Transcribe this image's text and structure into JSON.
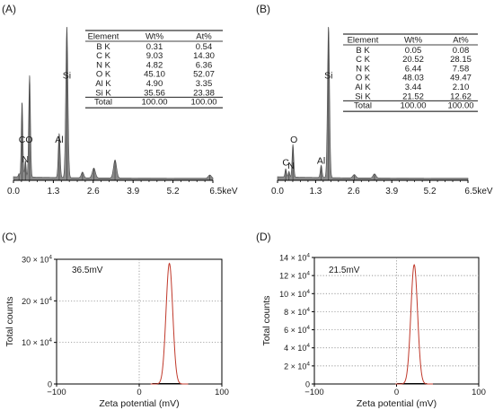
{
  "colors": {
    "spectrum_fill": "#8a8a8a",
    "spectrum_line": "#4a4a4a",
    "zeta_curve": "#c0392b",
    "zeta_base": "#000000",
    "grid": "#777777"
  },
  "chart_data": [
    {
      "id": "A",
      "panel_label": "(A)",
      "type": "area",
      "x_ticks": [
        "0.0",
        "1.3",
        "2.6",
        "3.9",
        "5.2",
        "6.5keV"
      ],
      "xlim": [
        0,
        6.5
      ],
      "peaks": [
        {
          "x": 0.18,
          "height": 0.02,
          "width": 0.02
        },
        {
          "x": 0.28,
          "height": 0.46,
          "width": 0.025
        },
        {
          "x": 0.39,
          "height": 0.1,
          "width": 0.022
        },
        {
          "x": 0.525,
          "height": 0.62,
          "width": 0.028
        },
        {
          "x": 1.49,
          "height": 0.27,
          "width": 0.03
        },
        {
          "x": 1.74,
          "height": 0.92,
          "width": 0.035
        },
        {
          "x": 2.25,
          "height": 0.035,
          "width": 0.04
        },
        {
          "x": 2.62,
          "height": 0.06,
          "width": 0.05
        },
        {
          "x": 3.31,
          "height": 0.11,
          "width": 0.05
        },
        {
          "x": 6.4,
          "height": 0.02,
          "width": 0.05
        }
      ],
      "peak_labels": [
        {
          "text": "Si",
          "x": 1.74,
          "y": 0.62
        },
        {
          "text": "CO",
          "x": 0.4,
          "y": 0.23
        },
        {
          "text": "Al",
          "x": 1.49,
          "y": 0.23
        },
        {
          "text": "N",
          "x": 0.39,
          "y": 0.11
        }
      ],
      "table": {
        "headers": [
          "Element",
          "Wt%",
          "At%"
        ],
        "rows": [
          [
            "B K",
            "0.31",
            "0.54"
          ],
          [
            "C K",
            "9.03",
            "14.30"
          ],
          [
            "N K",
            "4.82",
            "6.36"
          ],
          [
            "O K",
            "45.10",
            "52.07"
          ],
          [
            "Al K",
            "4.90",
            "3.35"
          ],
          [
            "Si K",
            "35.56",
            "23.38"
          ],
          [
            "Total",
            "100.00",
            "100.00"
          ]
        ]
      }
    },
    {
      "id": "B",
      "panel_label": "(B)",
      "type": "area",
      "x_ticks": [
        "0.0",
        "1.3",
        "2.6",
        "3.9",
        "5.2",
        "6.5keV"
      ],
      "xlim": [
        0,
        6.5
      ],
      "peaks": [
        {
          "x": 0.28,
          "height": 0.05,
          "width": 0.025
        },
        {
          "x": 0.39,
          "height": 0.035,
          "width": 0.022
        },
        {
          "x": 0.525,
          "height": 0.2,
          "width": 0.028
        },
        {
          "x": 1.49,
          "height": 0.075,
          "width": 0.03
        },
        {
          "x": 1.74,
          "height": 0.92,
          "width": 0.035
        },
        {
          "x": 2.62,
          "height": 0.02,
          "width": 0.05
        },
        {
          "x": 3.31,
          "height": 0.025,
          "width": 0.05
        }
      ],
      "peak_labels": [
        {
          "text": "Si",
          "x": 1.74,
          "y": 0.62
        },
        {
          "text": "O",
          "x": 0.56,
          "y": 0.23
        },
        {
          "text": "C",
          "x": 0.28,
          "y": 0.09
        },
        {
          "text": "N",
          "x": 0.46,
          "y": 0.07
        },
        {
          "text": "Al",
          "x": 1.49,
          "y": 0.1
        }
      ],
      "table": {
        "headers": [
          "Element",
          "Wt%",
          "At%"
        ],
        "rows": [
          [
            "B K",
            "0.05",
            "0.08"
          ],
          [
            "C K",
            "20.52",
            "28.15"
          ],
          [
            "N K",
            "6.44",
            "7.58"
          ],
          [
            "O K",
            "48.03",
            "49.47"
          ],
          [
            "Al K",
            "3.44",
            "2.10"
          ],
          [
            "Si K",
            "21.52",
            "12.62"
          ],
          [
            "Total",
            "100.00",
            "100.00"
          ]
        ]
      }
    },
    {
      "id": "C",
      "panel_label": "(C)",
      "type": "line",
      "xlabel": "Zeta potential (mV)",
      "ylabel": "Total counts",
      "xlim": [
        -100,
        100
      ],
      "ylim": [
        0,
        300000
      ],
      "x_ticks": [
        -100,
        0,
        100
      ],
      "y_ticks": [
        {
          "value": 0,
          "base": "0",
          "exp": ""
        },
        {
          "value": 100000,
          "base": "10 × 10",
          "exp": "4"
        },
        {
          "value": 200000,
          "base": "20 × 10",
          "exp": "4"
        },
        {
          "value": 300000,
          "base": "30 × 10",
          "exp": "4"
        }
      ],
      "peak_label": "36.5mV",
      "peak_mV": 36.5,
      "peak_counts": 290000,
      "half_width_mV": 6.5,
      "baseline_end_mV": 50
    },
    {
      "id": "D",
      "panel_label": "(D)",
      "type": "line",
      "xlabel": "Zeta potential (mV)",
      "ylabel": "Total counts",
      "xlim": [
        -100,
        100
      ],
      "ylim": [
        0,
        140000
      ],
      "x_ticks": [
        -100,
        0,
        100
      ],
      "y_ticks": [
        {
          "value": 0,
          "base": "0",
          "exp": ""
        },
        {
          "value": 20000,
          "base": "2 × 10",
          "exp": "4"
        },
        {
          "value": 40000,
          "base": "4 × 10",
          "exp": "4"
        },
        {
          "value": 60000,
          "base": "6 × 10",
          "exp": "4"
        },
        {
          "value": 80000,
          "base": "8 × 10",
          "exp": "4"
        },
        {
          "value": 100000,
          "base": "10 × 10",
          "exp": "4"
        },
        {
          "value": 120000,
          "base": "12 × 10",
          "exp": "4"
        },
        {
          "value": 140000,
          "base": "14 × 10",
          "exp": "4"
        }
      ],
      "peak_label": "21.5mV",
      "peak_mV": 21.5,
      "peak_counts": 132000,
      "half_width_mV": 6.5,
      "baseline_end_mV": 37
    }
  ]
}
